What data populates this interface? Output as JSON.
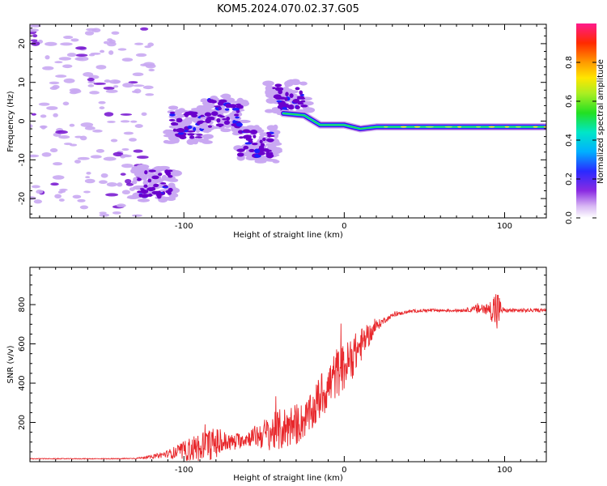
{
  "figure_title": "KOM5.2024.070.02.37.G05",
  "colors": {
    "snr_line": "#e8272b",
    "axes": "#000000",
    "ridge_dark": "#6a00cc",
    "ridge_light": "#c9a8f2"
  },
  "chart_data": [
    {
      "type": "heatmap",
      "title": "KOM5.2024.070.02.37.G05",
      "xlabel": "Height of straight line (km)",
      "ylabel": "Frequency (Hz)",
      "xlim": [
        -196,
        126
      ],
      "ylim": [
        -25,
        25
      ],
      "xticks": [
        -100,
        0,
        100
      ],
      "xtick_labels": [
        "-100",
        "0",
        "100"
      ],
      "yticks": [
        20,
        10,
        0,
        -10,
        -20
      ],
      "ytick_labels": [
        "20",
        "10",
        "0",
        "-10",
        "-20"
      ],
      "colorbar": {
        "label": "Normalized spectral amplitude",
        "range": [
          0,
          1
        ],
        "ticks": [
          0.0,
          0.2,
          0.4,
          0.6,
          0.8
        ],
        "tick_labels": [
          "0.0",
          "0.2",
          "0.4",
          "0.6",
          "0.8"
        ],
        "colormap": "rainbow (white-violet-blue-cyan-green-yellow-red-magenta)"
      },
      "features": [
        {
          "name": "scattered weak noise",
          "x_range": [
            -196,
            -120
          ],
          "y_range": [
            -25,
            25
          ],
          "amplitude": 0.05
        },
        {
          "name": "cluster",
          "x_center": -118,
          "y_center": -16,
          "amplitude": 0.35
        },
        {
          "name": "cluster",
          "x_center": -98,
          "y_center": -1,
          "amplitude": 0.3
        },
        {
          "name": "cluster",
          "x_center": -75,
          "y_center": 2,
          "amplitude": 0.2
        },
        {
          "name": "cluster",
          "x_center": -55,
          "y_center": -6,
          "amplitude": 0.2
        },
        {
          "name": "cluster",
          "x_center": -35,
          "y_center": 6,
          "amplitude": 0.2
        },
        {
          "name": "ridge",
          "points": [
            [
              -38,
              2
            ],
            [
              -25,
              1.5
            ],
            [
              -15,
              -1
            ],
            [
              0,
              -1
            ],
            [
              10,
              -2
            ],
            [
              20,
              -1.5
            ],
            [
              40,
              -1.5
            ],
            [
              60,
              -1.5
            ],
            [
              80,
              -1.5
            ],
            [
              95,
              -1.5
            ],
            [
              110,
              -1.5
            ],
            [
              126,
              -1.5
            ]
          ],
          "amplitude": 0.75
        }
      ],
      "grid": false
    },
    {
      "type": "line",
      "xlabel": "Height of straight line (km)",
      "ylabel": "SNR (v/v)",
      "xlim": [
        -196,
        126
      ],
      "ylim": [
        0,
        990
      ],
      "xticks": [
        -100,
        0,
        100
      ],
      "xtick_labels": [
        "-100",
        "0",
        "100"
      ],
      "yticks": [
        200,
        400,
        600,
        800
      ],
      "ytick_labels": [
        "200",
        "400",
        "600",
        "800"
      ],
      "grid": false,
      "series": [
        {
          "x": [
            -196,
            -180,
            -160,
            -140,
            -130,
            -120,
            -110,
            -100,
            -90,
            -80,
            -70,
            -60,
            -50,
            -40,
            -35,
            -30,
            -25,
            -20,
            -15,
            -10,
            -5,
            0,
            5,
            10,
            15,
            20,
            25,
            30,
            40,
            50,
            60,
            70,
            80,
            85,
            90,
            93,
            95,
            98,
            100,
            110,
            126
          ],
          "y": [
            15,
            15,
            15,
            15,
            17,
            25,
            40,
            55,
            75,
            95,
            100,
            120,
            140,
            160,
            180,
            190,
            210,
            250,
            330,
            380,
            450,
            480,
            530,
            590,
            640,
            690,
            720,
            745,
            765,
            770,
            770,
            770,
            775,
            780,
            775,
            778,
            770,
            775,
            770,
            770,
            772
          ],
          "noise": [
            2,
            2,
            2,
            2,
            3,
            8,
            20,
            50,
            80,
            80,
            40,
            40,
            80,
            110,
            110,
            110,
            90,
            100,
            120,
            120,
            130,
            120,
            110,
            90,
            60,
            30,
            15,
            10,
            8,
            8,
            8,
            8,
            12,
            40,
            30,
            80,
            140,
            25,
            10,
            10,
            8
          ]
        }
      ]
    }
  ]
}
